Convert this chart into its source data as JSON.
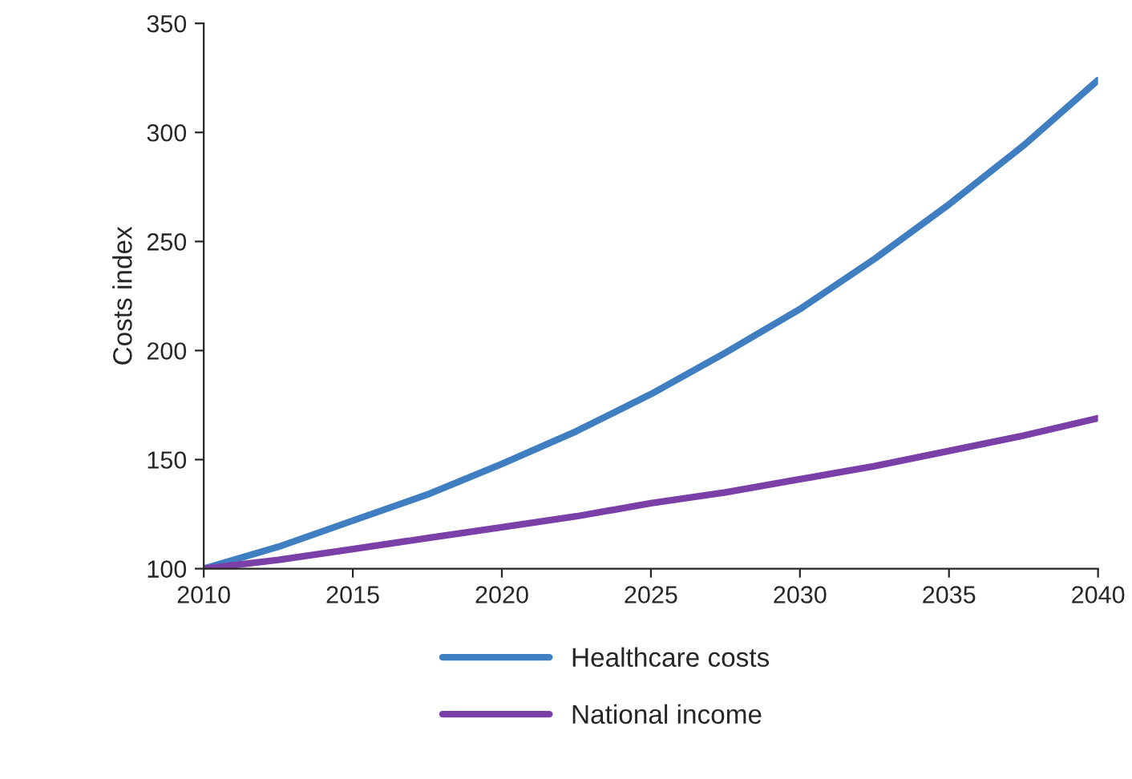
{
  "chart_data": {
    "type": "line",
    "ylabel": "Costs index",
    "x": [
      2010,
      2012.5,
      2015,
      2017.5,
      2020,
      2022.5,
      2025,
      2027.5,
      2030,
      2032.5,
      2035,
      2037.5,
      2040
    ],
    "series": [
      {
        "name": "Healthcare costs",
        "color": "#3f7fc1",
        "values": [
          100,
          110,
          122,
          134,
          148,
          163,
          180,
          199,
          219,
          242,
          267,
          294,
          324
        ]
      },
      {
        "name": "National income",
        "color": "#7b3fa8",
        "values": [
          100,
          104,
          109,
          114,
          119,
          124,
          130,
          135,
          141,
          147,
          154,
          161,
          169
        ]
      }
    ],
    "xlim": [
      2010,
      2040
    ],
    "xticks": [
      2010,
      2015,
      2020,
      2025,
      2030,
      2035,
      2040
    ],
    "ylim": [
      100,
      350
    ],
    "yticks": [
      100,
      150,
      200,
      250,
      300,
      350
    ],
    "grid": false,
    "legend": "bottom",
    "marker": "none",
    "line_style": "solid"
  }
}
